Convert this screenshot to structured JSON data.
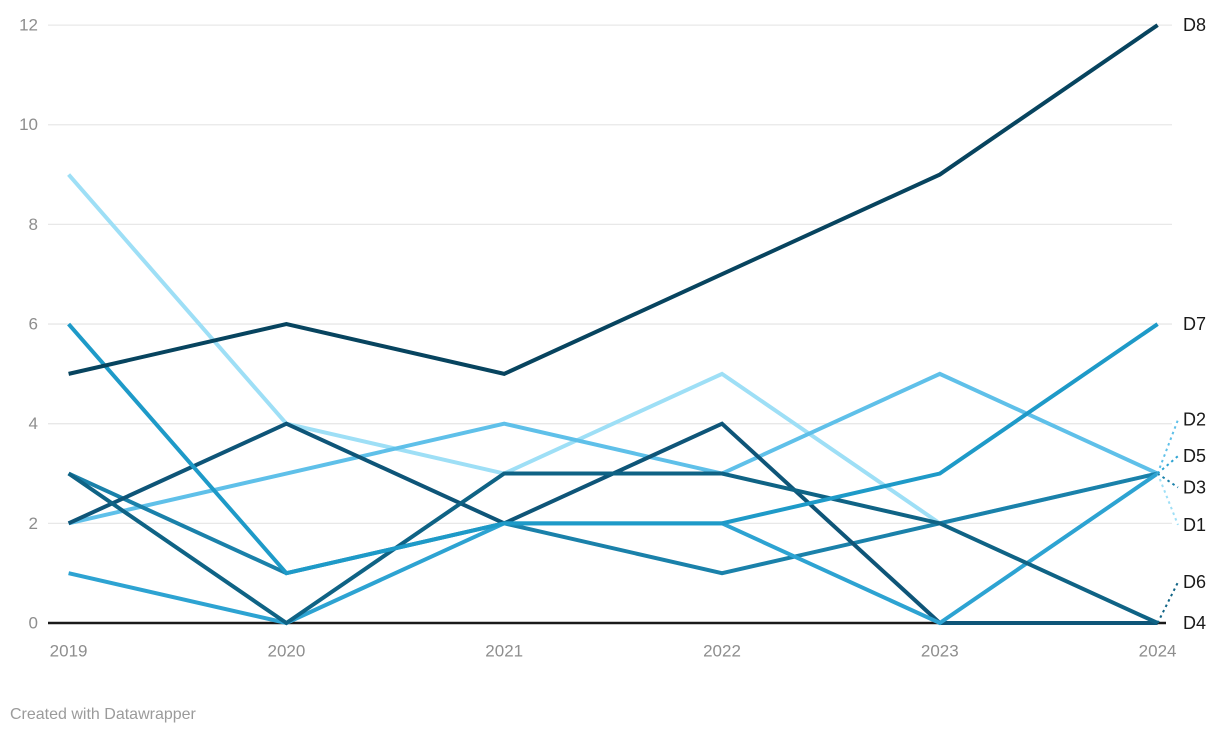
{
  "chart_data": {
    "type": "line",
    "x": [
      2019,
      2020,
      2021,
      2022,
      2023,
      2024
    ],
    "series": [
      {
        "name": "D1",
        "color": "#9edff6",
        "values": [
          9,
          4,
          3,
          5,
          2,
          3
        ],
        "label_y_value": 1.97,
        "leader": true
      },
      {
        "name": "D2",
        "color": "#5fc0e9",
        "values": [
          2,
          3,
          4,
          3,
          5,
          3
        ],
        "label_y_value": 4.08,
        "leader": true
      },
      {
        "name": "D3",
        "color": "#1a81aa",
        "values": [
          3,
          1,
          2,
          1,
          2,
          3
        ],
        "label_y_value": 2.72,
        "leader": true
      },
      {
        "name": "D4",
        "color": "#0e5578",
        "values": [
          2,
          4,
          2,
          4,
          0,
          0
        ],
        "label_y_value": 0.0,
        "leader": false
      },
      {
        "name": "D5",
        "color": "#2da3d2",
        "values": [
          1,
          0,
          2,
          2,
          0,
          3
        ],
        "label_y_value": 3.35,
        "leader": true
      },
      {
        "name": "D6",
        "color": "#0f6385",
        "values": [
          3,
          0,
          3,
          3,
          2,
          0
        ],
        "label_y_value": 0.82,
        "leader": true
      },
      {
        "name": "D7",
        "color": "#1e9ac8",
        "values": [
          6,
          1,
          2,
          2,
          3,
          6
        ],
        "label_y_value": 6.0,
        "leader": false
      },
      {
        "name": "D8",
        "color": "#07445f",
        "values": [
          5,
          6,
          5,
          7,
          9,
          12
        ],
        "label_y_value": 12.0,
        "leader": false
      }
    ],
    "ylim": [
      0,
      12
    ],
    "yticks": [
      0,
      2,
      4,
      6,
      8,
      10,
      12
    ],
    "grid": "horizontal",
    "legend_position": "right-edge-labels",
    "title": "",
    "xlabel": "",
    "ylabel": ""
  },
  "footer": {
    "credit": "Created with Datawrapper"
  },
  "colors": {
    "background": "#ffffff",
    "grid": "#e8e8e8",
    "axis": "#1a1a1a",
    "tick_label": "#8e8e8e",
    "series_label": "#1a1a1a",
    "footer_text": "#9b9b9b"
  }
}
